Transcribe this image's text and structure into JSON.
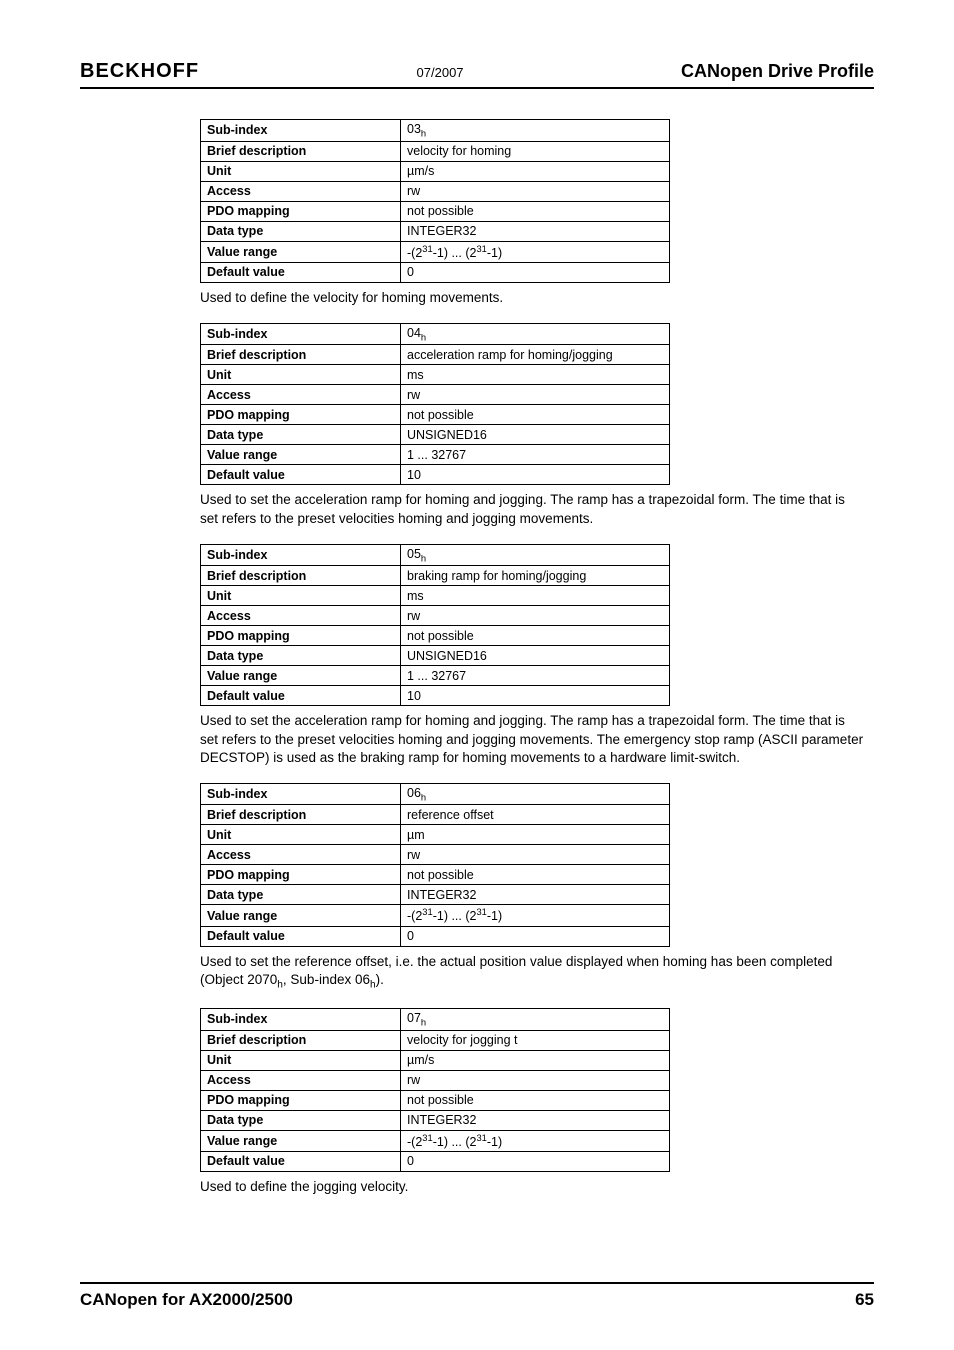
{
  "header": {
    "brand": "BECKHOFF",
    "date": "07/2007",
    "title": "CANopen Drive Profile"
  },
  "tables": [
    {
      "label_col": [
        "Sub-index",
        "Brief description",
        "Unit",
        "Access",
        "PDO mapping",
        "Data type",
        "Value range",
        "Default value"
      ],
      "value_col": [
        "03_h",
        "velocity for homing",
        "µm/s",
        "rw",
        "not possible",
        "INTEGER32",
        "-(2^31-1) ... (2^31-1)",
        "0"
      ],
      "description": "Used to define the velocity for homing movements."
    },
    {
      "label_col": [
        "Sub-index",
        "Brief description",
        "Unit",
        "Access",
        "PDO mapping",
        "Data type",
        "Value range",
        "Default value"
      ],
      "value_col": [
        "04_h",
        "acceleration ramp for homing/jogging",
        "ms",
        "rw",
        "not possible",
        "UNSIGNED16",
        "1 ... 32767",
        "10"
      ],
      "description": "Used to set the acceleration ramp for homing and jogging. The ramp has a trapezoidal form. The time that is set refers to the preset velocities homing and jogging movements."
    },
    {
      "label_col": [
        "Sub-index",
        "Brief description",
        "Unit",
        "Access",
        "PDO mapping",
        "Data type",
        "Value range",
        "Default value"
      ],
      "value_col": [
        "05_h",
        "braking ramp for homing/jogging",
        "ms",
        "rw",
        "not possible",
        "UNSIGNED16",
        "1 ... 32767",
        "10"
      ],
      "description": "Used to set the acceleration ramp for homing and jogging. The ramp has a trapezoidal form. The time that is set refers to the preset velocities homing and jogging movements. The emergency stop ramp (ASCII parameter DECSTOP) is used as the braking ramp for homing movements to a hardware limit-switch."
    },
    {
      "label_col": [
        "Sub-index",
        "Brief description",
        "Unit",
        "Access",
        "PDO mapping",
        "Data type",
        "Value range",
        "Default value"
      ],
      "value_col": [
        "06_h",
        "reference offset",
        "µm",
        "rw",
        "not possible",
        "INTEGER32",
        "-(2^31-1) ... (2^31-1)",
        "0"
      ],
      "description": "Used to set the reference offset, i.e. the actual position value displayed when homing has been completed (Object 2070_h, Sub-index 06_h)."
    },
    {
      "label_col": [
        "Sub-index",
        "Brief description",
        "Unit",
        "Access",
        "PDO mapping",
        "Data type",
        "Value range",
        "Default value"
      ],
      "value_col": [
        "07_h",
        "velocity for jogging t",
        "µm/s",
        "rw",
        "not possible",
        "INTEGER32",
        "-(2^31-1) ... (2^31-1)",
        "0"
      ],
      "description": "Used to define the jogging velocity."
    }
  ],
  "footer": {
    "title": "CANopen for AX2000/2500",
    "page": "65"
  }
}
